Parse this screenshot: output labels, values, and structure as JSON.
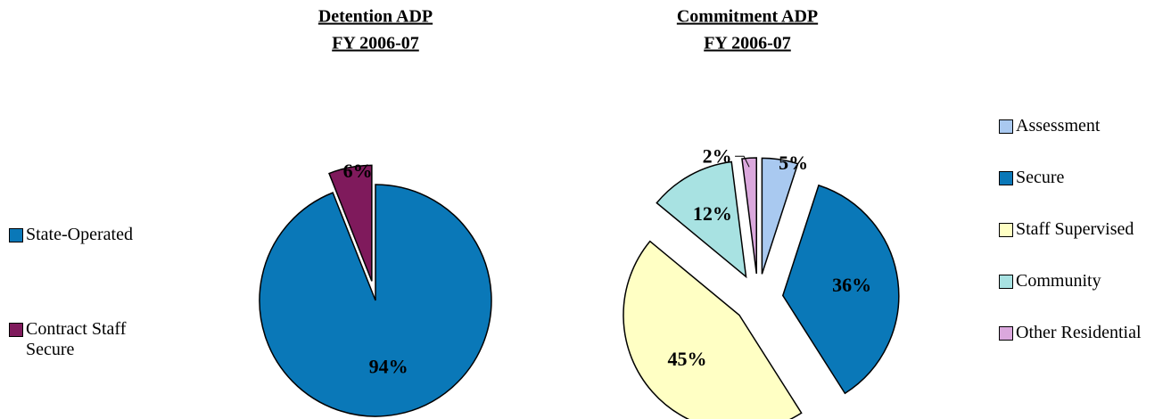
{
  "chart_data": [
    {
      "type": "pie",
      "title": "Detention ADP",
      "subtitle": "FY 2006-07",
      "categories": [
        "State-Operated",
        "Contract Staff Secure"
      ],
      "values": [
        94,
        6
      ],
      "value_labels": [
        "94%",
        "6%"
      ],
      "colors": [
        "#0a78b8",
        "#7f1a5c"
      ],
      "explode": [
        false,
        true
      ]
    },
    {
      "type": "pie",
      "title": "Commitment ADP",
      "subtitle": "FY 2006-07",
      "categories": [
        "Assessment",
        "Secure",
        "Staff Supervised",
        "Community",
        "Other Residential"
      ],
      "values": [
        5,
        36,
        45,
        12,
        2
      ],
      "value_labels": [
        "5%",
        "36%",
        "45%",
        "12%",
        "2%"
      ],
      "colors": [
        "#a9c9f0",
        "#0a78b8",
        "#ffffc4",
        "#a8e2e2",
        "#dba8dd"
      ],
      "explode": [
        true,
        true,
        true,
        true,
        true
      ]
    }
  ]
}
